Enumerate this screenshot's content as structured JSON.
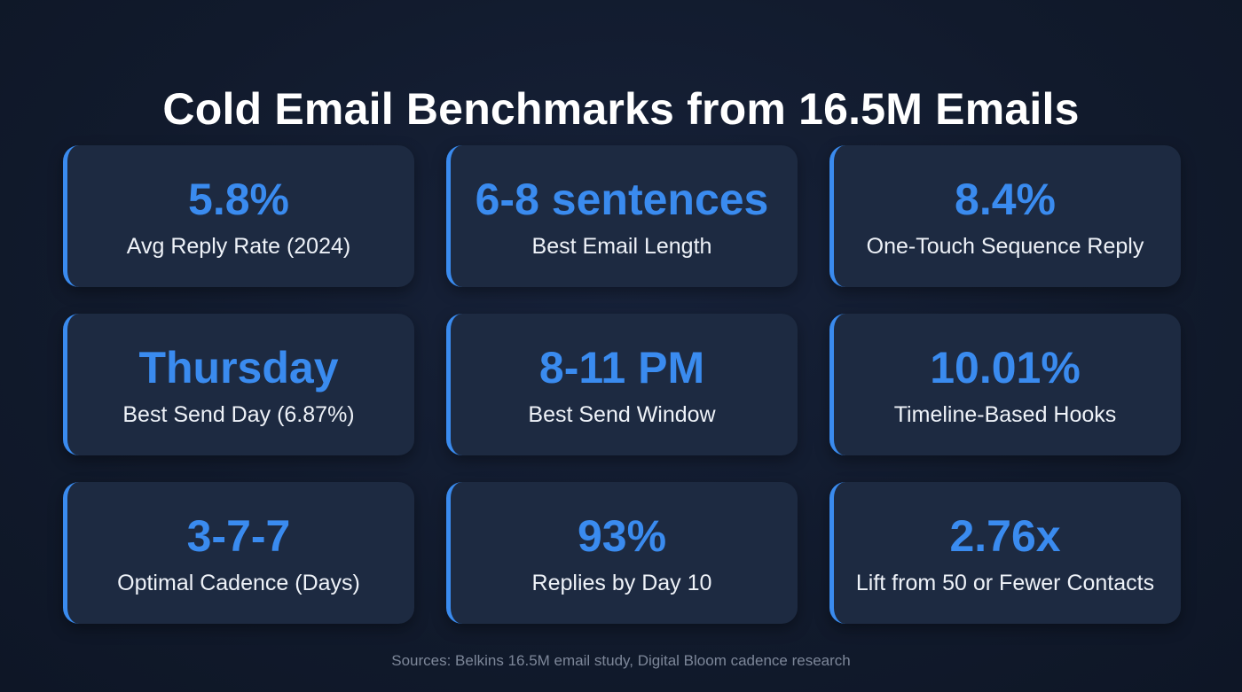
{
  "title": "Cold Email Benchmarks from 16.5M Emails",
  "colors": {
    "background": "#111a2c",
    "card": "#1d2a41",
    "accent": "#3a8bef",
    "label": "#eef2f8",
    "sources": "#7d8799"
  },
  "cards": [
    {
      "value": "5.8%",
      "label": "Avg Reply Rate (2024)"
    },
    {
      "value": "6-8 sentences",
      "label": "Best Email Length"
    },
    {
      "value": "8.4%",
      "label": "One-Touch Sequence Reply"
    },
    {
      "value": "Thursday",
      "label": "Best Send Day (6.87%)"
    },
    {
      "value": "8-11 PM",
      "label": "Best Send Window"
    },
    {
      "value": "10.01%",
      "label": "Timeline-Based Hooks"
    },
    {
      "value": "3-7-7",
      "label": "Optimal Cadence (Days)"
    },
    {
      "value": "93%",
      "label": "Replies by Day 10"
    },
    {
      "value": "2.76x",
      "label": "Lift from 50 or Fewer Contacts"
    }
  ],
  "sources": "Sources: Belkins 16.5M email study, Digital Bloom cadence research"
}
